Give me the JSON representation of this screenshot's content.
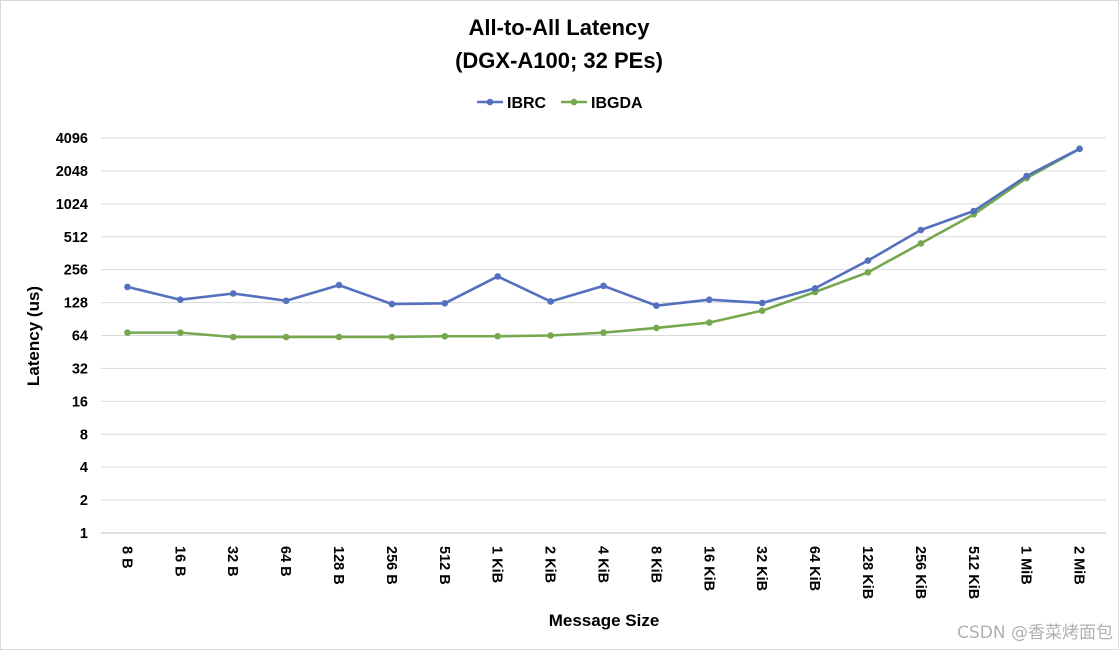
{
  "chart_data": {
    "type": "line",
    "title_line1": "All-to-All Latency",
    "title_line2": "(DGX-A100; 32 PEs)",
    "xlabel": "Message Size",
    "ylabel": "Latency (us)",
    "y_scale": "log2",
    "ylim": [
      1,
      4096
    ],
    "y_ticks": [
      "1",
      "2",
      "4",
      "8",
      "16",
      "32",
      "64",
      "128",
      "256",
      "512",
      "1024",
      "2048",
      "4096"
    ],
    "categories": [
      "8 B",
      "16 B",
      "32 B",
      "64 B",
      "128 B",
      "256 B",
      "512 B",
      "1 KiB",
      "2 KiB",
      "4 KiB",
      "8 KiB",
      "16 KiB",
      "32 KiB",
      "64 KiB",
      "128 KiB",
      "256 KiB",
      "512 KiB",
      "1 MiB",
      "2 MiB"
    ],
    "grid": "horizontal",
    "legend_position": "top-center",
    "series": [
      {
        "name": "IBRC",
        "color": "#5470be",
        "values": [
          178,
          136,
          155,
          133,
          185,
          124,
          126,
          222,
          131,
          182,
          120,
          136,
          127,
          173,
          310,
          590,
          880,
          1840,
          3260
        ]
      },
      {
        "name": "IBGDA",
        "color": "#76a84f",
        "values": [
          68,
          68,
          62,
          62,
          62,
          62,
          63,
          63,
          64,
          68,
          75,
          84,
          108,
          160,
          242,
          445,
          820,
          1760,
          3260
        ]
      }
    ]
  },
  "watermark": "CSDN @香菜烤面包"
}
